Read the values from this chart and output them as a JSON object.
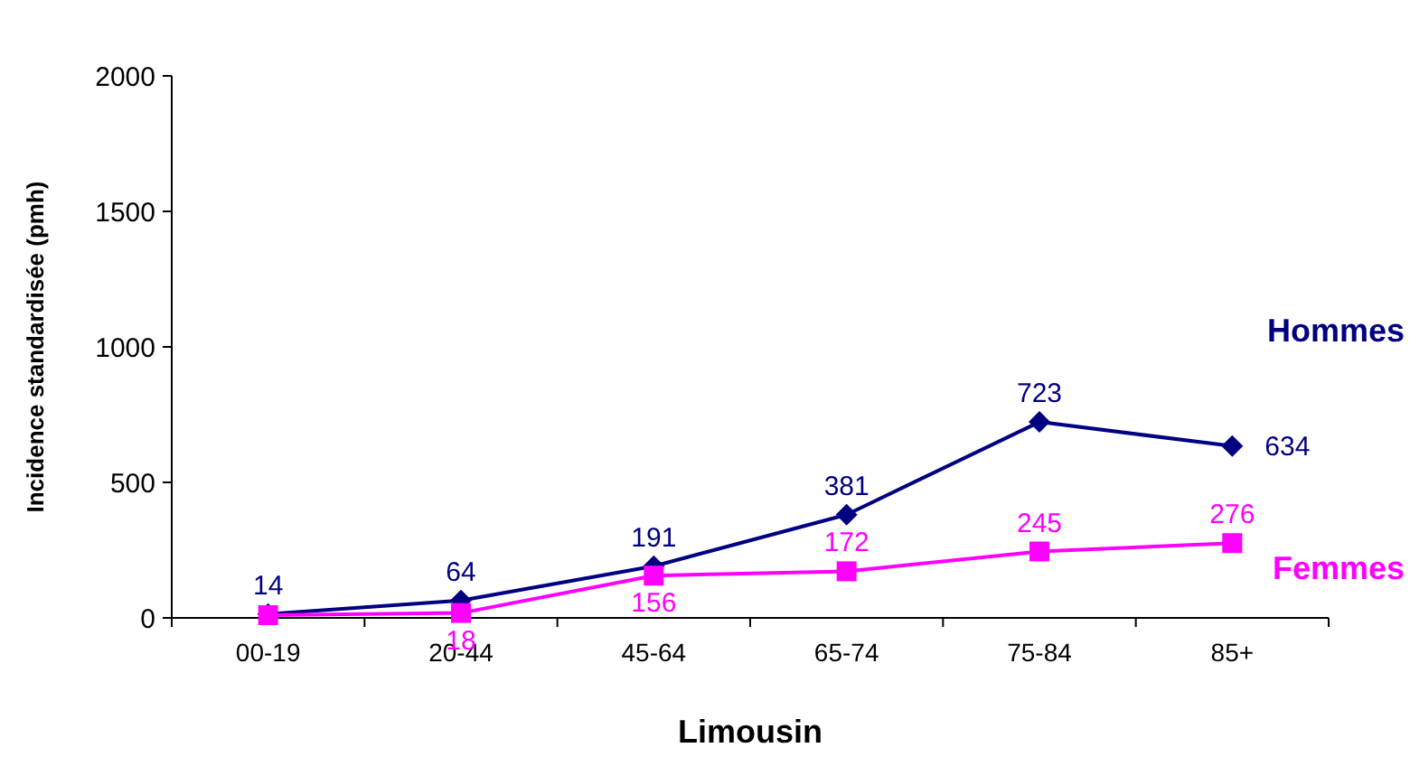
{
  "chart_data": {
    "type": "line",
    "xlabel": "Limousin",
    "ylabel": "Incidence standardisée  (pmh)",
    "categories": [
      "00-19",
      "20-44",
      "45-64",
      "65-74",
      "75-84",
      "85+"
    ],
    "ylim": [
      0,
      2000
    ],
    "yticks": [
      0,
      500,
      1000,
      1500,
      2000
    ],
    "series": [
      {
        "name": "Hommes",
        "color": "#000080",
        "marker": "diamond",
        "values": [
          14,
          64,
          191,
          381,
          723,
          634
        ],
        "value_labels": [
          "14",
          "64",
          "191",
          "381",
          "723",
          "634"
        ]
      },
      {
        "name": "Femmes",
        "color": "#ff00ff",
        "marker": "square",
        "values": [
          10,
          18,
          156,
          172,
          245,
          276
        ],
        "value_labels": [
          null,
          "18",
          "156",
          "172",
          "245",
          "276"
        ]
      }
    ]
  }
}
